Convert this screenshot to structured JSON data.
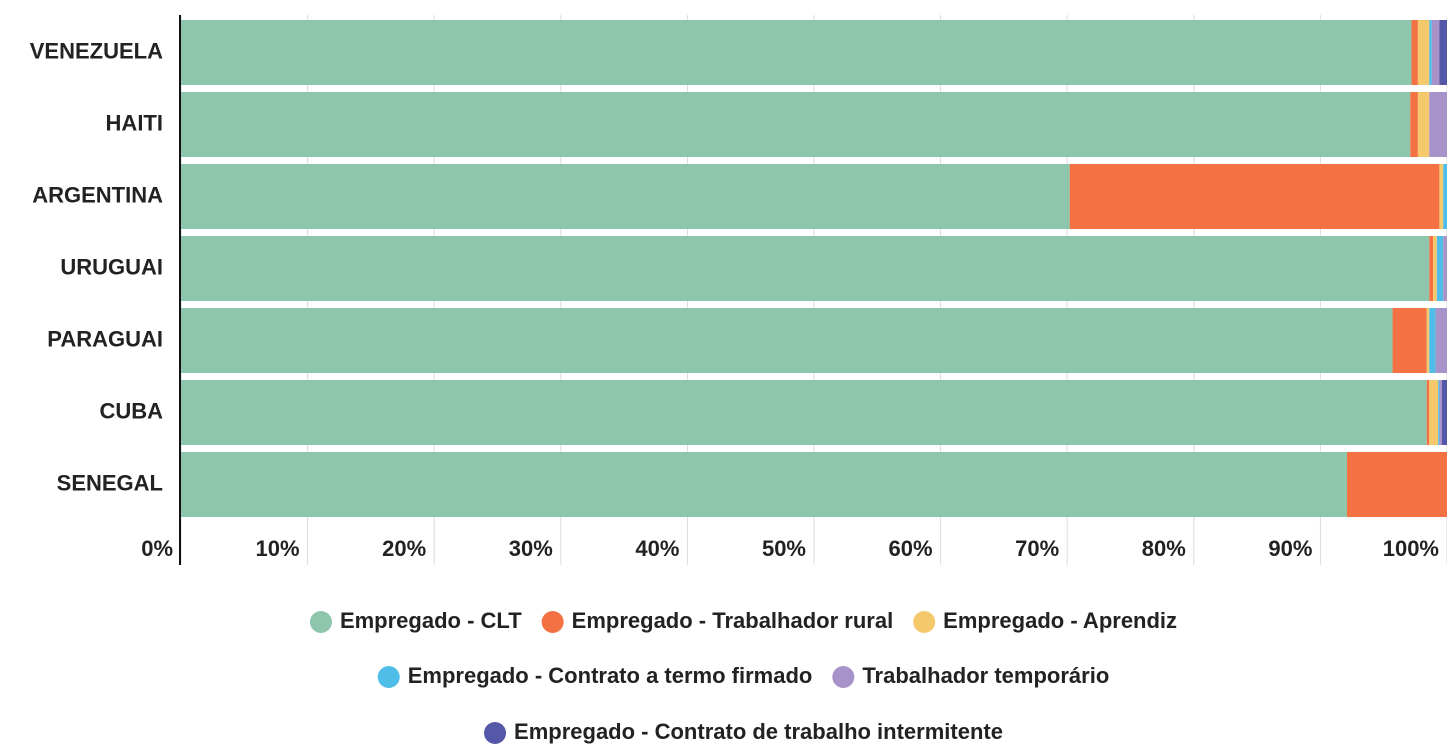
{
  "chart_data": {
    "type": "stacked_bar_horizontal",
    "categories": [
      "VENEZUELA",
      "HAITI",
      "ARGENTINA",
      "URUGUAI",
      "PARAGUAI",
      "CUBA",
      "SENEGAL"
    ],
    "series": [
      {
        "name": "Empregado - CLT",
        "color": "#8dc5ad",
        "values": [
          97.2,
          97.1,
          70.2,
          98.6,
          95.7,
          98.4,
          92.1
        ]
      },
      {
        "name": "Empregado - Trabalhador rural",
        "color": "#f37142",
        "values": [
          0.5,
          0.6,
          29.2,
          0.3,
          2.7,
          0.2,
          7.9
        ]
      },
      {
        "name": "Empregado - Aprendiz",
        "color": "#f5c96b",
        "values": [
          0.9,
          0.9,
          0.3,
          0.3,
          0.2,
          0.7,
          0
        ]
      },
      {
        "name": "Empregado - Contrato a termo firmado",
        "color": "#4fbde8",
        "values": [
          0.2,
          0,
          0.3,
          0.5,
          0.5,
          0.1,
          0
        ]
      },
      {
        "name": "Trabalhador temporário",
        "color": "#a792c9",
        "values": [
          0.6,
          1.4,
          0,
          0.3,
          0.9,
          0.2,
          0
        ]
      },
      {
        "name": "Empregado - Contrato de trabalho intermitente",
        "color": "#5557a8",
        "values": [
          0.6,
          0,
          0,
          0,
          0,
          0.4,
          0
        ]
      }
    ],
    "xlim": [
      0,
      100
    ],
    "xticks": [
      {
        "value": 0,
        "label": "0%"
      },
      {
        "value": 10,
        "label": "10%"
      },
      {
        "value": 20,
        "label": "20%"
      },
      {
        "value": 30,
        "label": "30%"
      },
      {
        "value": 40,
        "label": "40%"
      },
      {
        "value": 50,
        "label": "50%"
      },
      {
        "value": 60,
        "label": "60%"
      },
      {
        "value": 70,
        "label": "70%"
      },
      {
        "value": 80,
        "label": "80%"
      },
      {
        "value": 90,
        "label": "90%"
      },
      {
        "value": 100,
        "label": "100%"
      }
    ],
    "grid": true
  }
}
